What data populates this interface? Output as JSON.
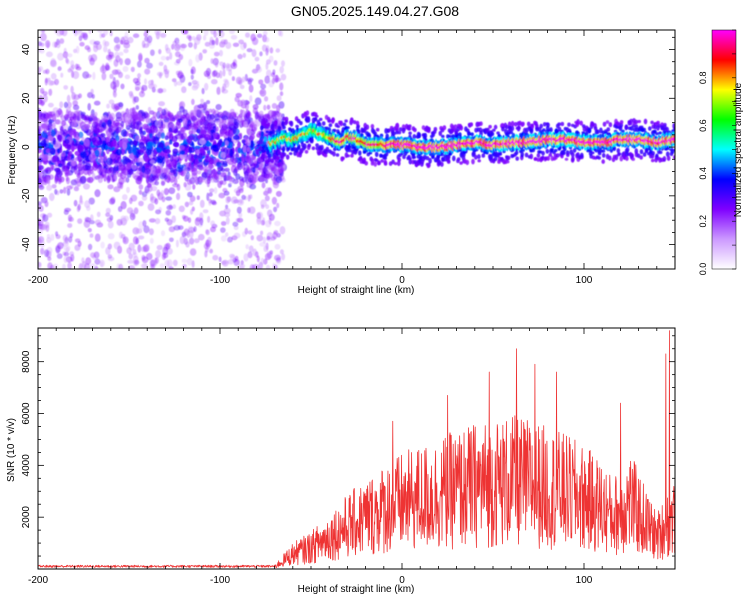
{
  "figure_title": "GN05.2025.149.04.27.G08",
  "chart_data": [
    {
      "type": "heatmap",
      "xlabel": "Height of straight line (km)",
      "ylabel": "Frequency (Hz)",
      "xlim": [
        -200,
        150
      ],
      "ylim": [
        -50,
        48
      ],
      "x_ticks": [
        -200,
        -100,
        0,
        100
      ],
      "x_tick_labels": [
        "-200",
        "-100",
        "0",
        "100"
      ],
      "y_ticks": [
        -40,
        -20,
        0,
        20,
        40
      ],
      "y_tick_labels": [
        "-40",
        "-20",
        "0",
        "20",
        "40"
      ],
      "colorbar": {
        "label": "Normalized spectral amplitude",
        "range": [
          0,
          1
        ],
        "ticks": [
          0.0,
          0.2,
          0.4,
          0.6,
          0.8
        ],
        "tick_labels": [
          "0.0",
          "0.2",
          "0.4",
          "0.6",
          "0.8"
        ],
        "colors": [
          "#ffffff",
          "#cc99ff",
          "#7f00ff",
          "#0000ff",
          "#00ffff",
          "#00ff00",
          "#ffff00",
          "#ff0000",
          "#ff00ff"
        ]
      },
      "noise_region_end_km": -65,
      "ridge_center_freq": [
        [
          -75,
          1
        ],
        [
          -70,
          2
        ],
        [
          -65,
          4
        ],
        [
          -60,
          3
        ],
        [
          -55,
          5
        ],
        [
          -50,
          7
        ],
        [
          -45,
          5
        ],
        [
          -40,
          4
        ],
        [
          -35,
          2
        ],
        [
          -30,
          4
        ],
        [
          -25,
          3
        ],
        [
          -20,
          1
        ],
        [
          -10,
          1
        ],
        [
          0,
          1
        ],
        [
          10,
          0
        ],
        [
          20,
          0
        ],
        [
          30,
          1
        ],
        [
          40,
          2
        ],
        [
          50,
          1
        ],
        [
          60,
          2
        ],
        [
          70,
          2
        ],
        [
          80,
          3
        ],
        [
          90,
          3
        ],
        [
          100,
          2
        ],
        [
          110,
          2
        ],
        [
          120,
          3
        ],
        [
          130,
          3
        ],
        [
          140,
          2
        ],
        [
          150,
          3
        ]
      ]
    },
    {
      "type": "line",
      "xlabel": "Height of straight line (km)",
      "ylabel": "SNR (10 * v/v)",
      "xlim": [
        -200,
        150
      ],
      "ylim": [
        0,
        9300
      ],
      "x_ticks": [
        -200,
        -100,
        0,
        100
      ],
      "x_tick_labels": [
        "-200",
        "-100",
        "0",
        "100"
      ],
      "y_ticks": [
        2000,
        4000,
        6000,
        8000
      ],
      "y_tick_labels": [
        "2000",
        "4000",
        "6000",
        "8000"
      ],
      "color": "#ee3333",
      "envelope": [
        [
          -200,
          100
        ],
        [
          -150,
          100
        ],
        [
          -100,
          100
        ],
        [
          -70,
          110
        ],
        [
          -65,
          400
        ],
        [
          -60,
          700
        ],
        [
          -50,
          1000
        ],
        [
          -40,
          1500
        ],
        [
          -30,
          2000
        ],
        [
          -20,
          2400
        ],
        [
          -10,
          2800
        ],
        [
          0,
          3100
        ],
        [
          10,
          3300
        ],
        [
          20,
          3500
        ],
        [
          30,
          3700
        ],
        [
          40,
          3900
        ],
        [
          50,
          4000
        ],
        [
          60,
          4100
        ],
        [
          70,
          4000
        ],
        [
          80,
          3800
        ],
        [
          90,
          3600
        ],
        [
          100,
          3300
        ],
        [
          110,
          2900
        ],
        [
          115,
          2500
        ],
        [
          120,
          2600
        ],
        [
          125,
          3200
        ],
        [
          130,
          2600
        ],
        [
          140,
          1500
        ],
        [
          150,
          2500
        ]
      ],
      "peaks": [
        [
          -5,
          5700
        ],
        [
          25,
          6700
        ],
        [
          48,
          7600
        ],
        [
          63,
          8500
        ],
        [
          73,
          7900
        ],
        [
          85,
          7600
        ],
        [
          120,
          6400
        ],
        [
          145,
          8300
        ],
        [
          147,
          9200
        ]
      ]
    }
  ]
}
